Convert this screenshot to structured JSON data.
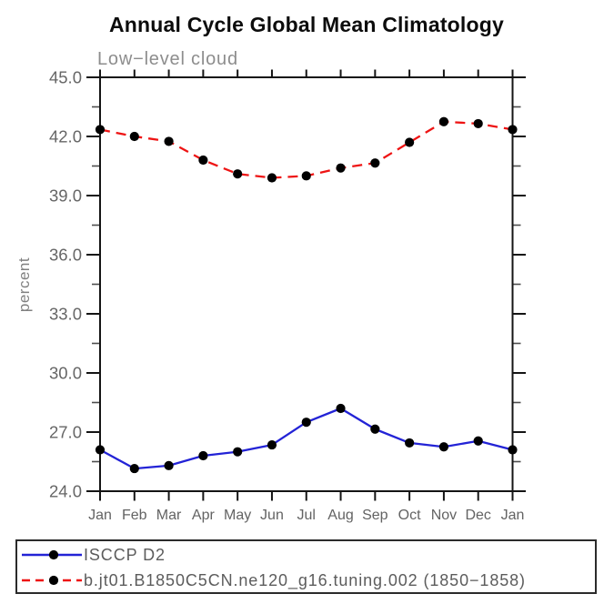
{
  "chart_data": {
    "type": "line",
    "title": "Annual Cycle Global Mean Climatology",
    "subtitle": "Low−level cloud",
    "xlabel": "",
    "ylabel": "percent",
    "x_ticklabels": [
      "Jan",
      "Feb",
      "Mar",
      "Apr",
      "May",
      "Jun",
      "Jul",
      "Aug",
      "Sep",
      "Oct",
      "Nov",
      "Dec",
      "Jan"
    ],
    "y_ticks": [
      24.0,
      27.0,
      30.0,
      33.0,
      36.0,
      39.0,
      42.0,
      45.0
    ],
    "ylim": [
      24.0,
      45.0
    ],
    "grid": false,
    "legend_position": "bottom-box",
    "marker_color": "#000000",
    "series": [
      {
        "name": "ISCCP D2",
        "color": "#2323d6",
        "style": "solid",
        "marker": "black-dot",
        "values": [
          26.1,
          25.15,
          25.3,
          25.8,
          26.0,
          26.35,
          27.5,
          28.2,
          27.15,
          26.45,
          26.25,
          26.55,
          26.1
        ]
      },
      {
        "name": "b.jt01.B1850C5CN.ne120_g16.tuning.002 (1850−1858)",
        "color": "#ee1414",
        "style": "dashed",
        "marker": "black-dot",
        "values": [
          42.35,
          42.0,
          41.75,
          40.8,
          40.1,
          39.9,
          40.0,
          40.4,
          40.65,
          41.7,
          42.75,
          42.65,
          42.35
        ]
      }
    ]
  }
}
